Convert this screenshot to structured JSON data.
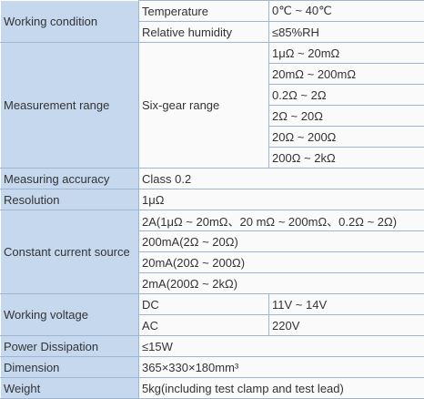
{
  "table": {
    "rows": [
      {
        "label": "Working condition",
        "items": [
          {
            "name": "Temperature",
            "value": "0℃ ~ 40℃"
          },
          {
            "name": "Relative humidity",
            "value": "≤85%RH"
          }
        ]
      },
      {
        "label": "Measurement range",
        "name": "Six-gear range",
        "values": [
          "1μΩ ~ 20mΩ",
          "20mΩ ~ 200mΩ",
          "0.2Ω ~ 2Ω",
          "2Ω ~ 20Ω",
          "20Ω ~ 200Ω",
          "200Ω ~ 2kΩ"
        ]
      },
      {
        "label": "Measuring accuracy",
        "value": "Class 0.2"
      },
      {
        "label": "Resolution",
        "value": "1μΩ"
      },
      {
        "label": "Constant current source",
        "values": [
          "2A(1μΩ ~ 20mΩ、20 mΩ ~ 200mΩ、0.2Ω ~ 2Ω)",
          "200mA(2Ω ~ 20Ω)",
          "20mA(20Ω ~ 200Ω)",
          "2mA(200Ω ~ 2kΩ)"
        ]
      },
      {
        "label": "Working voltage",
        "items": [
          {
            "name": "DC",
            "value": "11V ~ 14V"
          },
          {
            "name": "AC",
            "value": "220V"
          }
        ]
      },
      {
        "label": "Power Dissipation",
        "value": "≤15W"
      },
      {
        "label": "Dimension",
        "value": "365×330×180mm³"
      },
      {
        "label": "Weight",
        "value": "5kg(including test clamp and test lead)"
      }
    ]
  }
}
